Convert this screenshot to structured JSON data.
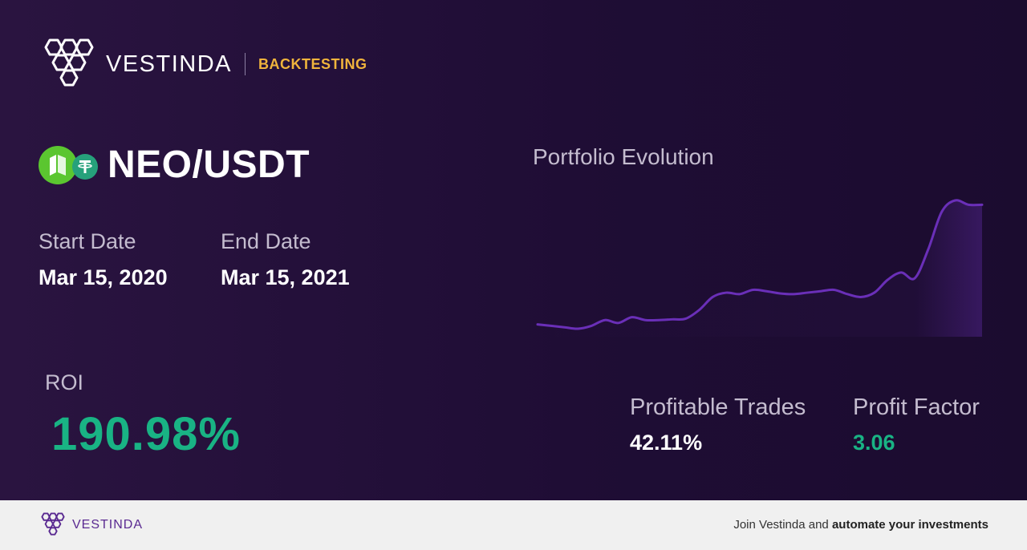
{
  "brand": {
    "name": "VESTINDA",
    "tag": "BACKTESTING",
    "accent": "#f0b43c"
  },
  "pair": {
    "name": "NEO/USDT",
    "base_icon": "neo-coin-icon",
    "quote_icon": "usdt-coin-icon"
  },
  "dates": {
    "start_label": "Start Date",
    "start_value": "Mar 15, 2020",
    "end_label": "End Date",
    "end_value": "Mar 15, 2021"
  },
  "roi": {
    "label": "ROI",
    "value": "190.98%",
    "color": "#19b384"
  },
  "chart": {
    "title": "Portfolio Evolution"
  },
  "chart_data": {
    "type": "line",
    "title": "Portfolio Evolution",
    "grid": false,
    "line_color": "#6a2fb8",
    "series": [
      {
        "values": [
          100,
          99,
          98,
          97,
          99,
          103,
          101,
          105,
          103,
          103,
          103.5,
          104,
          110,
          119,
          122,
          121,
          124,
          123,
          121.5,
          121,
          122,
          123,
          124,
          121,
          119,
          122,
          131,
          136,
          132,
          152,
          178,
          186,
          183,
          183
        ]
      }
    ]
  },
  "stats": {
    "profitable_label": "Profitable Trades",
    "profitable_value": "42.11%",
    "factor_label": "Profit Factor",
    "factor_value": "3.06",
    "factor_color": "#19b384"
  },
  "footer": {
    "brand": "VESTINDA",
    "cta_prefix": "Join Vestinda and ",
    "cta_bold": "automate your investments"
  }
}
